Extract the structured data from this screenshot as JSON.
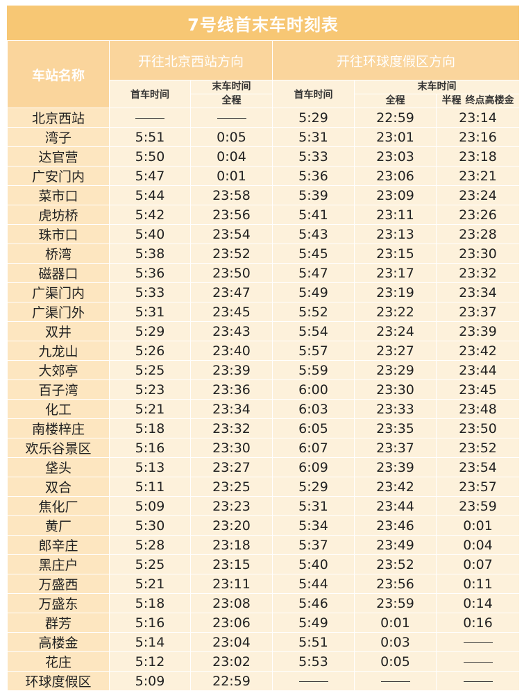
{
  "title": "7号线首末车时刻表",
  "header": {
    "station_col": "车站名称",
    "dir1": "开往北京西站方向",
    "dir2": "开往环球度假区方向",
    "first_train": "首车时间",
    "last_train": "末车时间",
    "full_route": "全程",
    "half_route": "半程",
    "terminal": "终点高楼金"
  },
  "dash": "——",
  "rows": [
    {
      "station": "北京西站",
      "d1_first": "——",
      "d1_last": "——",
      "d2_first": "5:29",
      "d2_last_full": "22:59",
      "d2_last_half": "23:14"
    },
    {
      "station": "湾子",
      "d1_first": "5:51",
      "d1_last": "0:05",
      "d2_first": "5:31",
      "d2_last_full": "23:01",
      "d2_last_half": "23:16"
    },
    {
      "station": "达官营",
      "d1_first": "5:50",
      "d1_last": "0:04",
      "d2_first": "5:33",
      "d2_last_full": "23:03",
      "d2_last_half": "23:18"
    },
    {
      "station": "广安门内",
      "d1_first": "5:47",
      "d1_last": "0:01",
      "d2_first": "5:36",
      "d2_last_full": "23:06",
      "d2_last_half": "23:21"
    },
    {
      "station": "菜市口",
      "d1_first": "5:44",
      "d1_last": "23:58",
      "d2_first": "5:39",
      "d2_last_full": "23:09",
      "d2_last_half": "23:24"
    },
    {
      "station": "虎坊桥",
      "d1_first": "5:42",
      "d1_last": "23:56",
      "d2_first": "5:41",
      "d2_last_full": "23:11",
      "d2_last_half": "23:26"
    },
    {
      "station": "珠市口",
      "d1_first": "5:40",
      "d1_last": "23:54",
      "d2_first": "5:43",
      "d2_last_full": "23:13",
      "d2_last_half": "23:28"
    },
    {
      "station": "桥湾",
      "d1_first": "5:38",
      "d1_last": "23:52",
      "d2_first": "5:45",
      "d2_last_full": "23:15",
      "d2_last_half": "23:30"
    },
    {
      "station": "磁器口",
      "d1_first": "5:36",
      "d1_last": "23:50",
      "d2_first": "5:47",
      "d2_last_full": "23:17",
      "d2_last_half": "23:32"
    },
    {
      "station": "广渠门内",
      "d1_first": "5:33",
      "d1_last": "23:47",
      "d2_first": "5:49",
      "d2_last_full": "23:19",
      "d2_last_half": "23:34"
    },
    {
      "station": "广渠门外",
      "d1_first": "5:31",
      "d1_last": "23:45",
      "d2_first": "5:52",
      "d2_last_full": "23:22",
      "d2_last_half": "23:37"
    },
    {
      "station": "双井",
      "d1_first": "5:29",
      "d1_last": "23:43",
      "d2_first": "5:54",
      "d2_last_full": "23:24",
      "d2_last_half": "23:39"
    },
    {
      "station": "九龙山",
      "d1_first": "5:26",
      "d1_last": "23:40",
      "d2_first": "5:57",
      "d2_last_full": "23:27",
      "d2_last_half": "23:42"
    },
    {
      "station": "大郊亭",
      "d1_first": "5:25",
      "d1_last": "23:39",
      "d2_first": "5:59",
      "d2_last_full": "23:29",
      "d2_last_half": "23:44"
    },
    {
      "station": "百子湾",
      "d1_first": "5:23",
      "d1_last": "23:36",
      "d2_first": "6:00",
      "d2_last_full": "23:30",
      "d2_last_half": "23:45"
    },
    {
      "station": "化工",
      "d1_first": "5:21",
      "d1_last": "23:34",
      "d2_first": "6:03",
      "d2_last_full": "23:33",
      "d2_last_half": "23:48"
    },
    {
      "station": "南楼梓庄",
      "d1_first": "5:18",
      "d1_last": "23:32",
      "d2_first": "6:05",
      "d2_last_full": "23:35",
      "d2_last_half": "23:50"
    },
    {
      "station": "欢乐谷景区",
      "d1_first": "5:16",
      "d1_last": "23:30",
      "d2_first": "6:07",
      "d2_last_full": "23:37",
      "d2_last_half": "23:52"
    },
    {
      "station": "垡头",
      "d1_first": "5:13",
      "d1_last": "23:27",
      "d2_first": "6:09",
      "d2_last_full": "23:39",
      "d2_last_half": "23:54"
    },
    {
      "station": "双合",
      "d1_first": "5:11",
      "d1_last": "23:25",
      "d2_first": "5:29",
      "d2_last_full": "23:42",
      "d2_last_half": "23:57"
    },
    {
      "station": "焦化厂",
      "d1_first": "5:09",
      "d1_last": "23:23",
      "d2_first": "5:31",
      "d2_last_full": "23:44",
      "d2_last_half": "23:59"
    },
    {
      "station": "黄厂",
      "d1_first": "5:30",
      "d1_last": "23:20",
      "d2_first": "5:34",
      "d2_last_full": "23:46",
      "d2_last_half": "0:01"
    },
    {
      "station": "郎辛庄",
      "d1_first": "5:28",
      "d1_last": "23:18",
      "d2_first": "5:37",
      "d2_last_full": "23:49",
      "d2_last_half": "0:04"
    },
    {
      "station": "黑庄户",
      "d1_first": "5:25",
      "d1_last": "23:15",
      "d2_first": "5:40",
      "d2_last_full": "23:52",
      "d2_last_half": "0:07"
    },
    {
      "station": "万盛西",
      "d1_first": "5:21",
      "d1_last": "23:11",
      "d2_first": "5:44",
      "d2_last_full": "23:56",
      "d2_last_half": "0:11"
    },
    {
      "station": "万盛东",
      "d1_first": "5:18",
      "d1_last": "23:08",
      "d2_first": "5:46",
      "d2_last_full": "23:59",
      "d2_last_half": "0:14"
    },
    {
      "station": "群芳",
      "d1_first": "5:16",
      "d1_last": "23:06",
      "d2_first": "5:49",
      "d2_last_full": "0:01",
      "d2_last_half": "0:16"
    },
    {
      "station": "高楼金",
      "d1_first": "5:14",
      "d1_last": "23:04",
      "d2_first": "5:51",
      "d2_last_full": "0:03",
      "d2_last_half": "——"
    },
    {
      "station": "花庄",
      "d1_first": "5:12",
      "d1_last": "23:02",
      "d2_first": "5:53",
      "d2_last_full": "0:05",
      "d2_last_half": "——"
    },
    {
      "station": "环球度假区",
      "d1_first": "5:09",
      "d1_last": "22:59",
      "d2_first": "——",
      "d2_last_full": "——",
      "d2_last_half": "——"
    }
  ]
}
